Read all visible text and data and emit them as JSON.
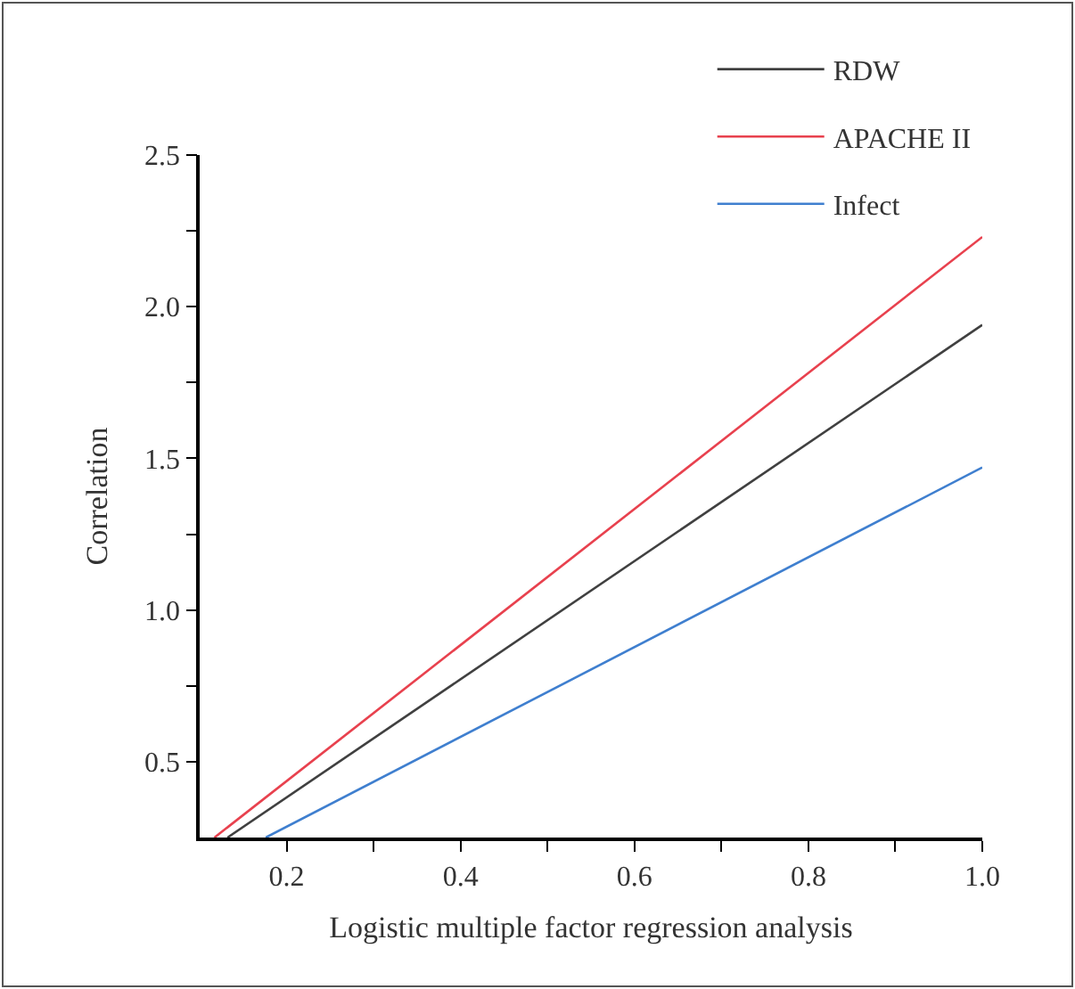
{
  "chart_data": {
    "type": "line",
    "xlabel": "Logistic multiple factor regression analysis",
    "ylabel": "Correlation",
    "xlim": [
      0.1,
      1.0
    ],
    "ylim": [
      0.25,
      2.5
    ],
    "xticks": [
      0.2,
      {
        "value": 0.3,
        "label": null
      },
      0.4,
      {
        "value": 0.5,
        "label": null
      },
      0.6,
      {
        "value": 0.7,
        "label": null
      },
      0.8,
      {
        "value": 0.9,
        "label": null
      },
      {
        "value": 1,
        "label": "1.0"
      }
    ],
    "yticks": [
      0.5,
      {
        "value": 0.75,
        "label": null
      },
      {
        "value": 1,
        "label": "1.0"
      },
      {
        "value": 1.25,
        "label": null
      },
      1.5,
      {
        "value": 1.75,
        "label": null
      },
      {
        "value": 2,
        "label": "2.0"
      },
      {
        "value": 2.25,
        "label": null
      },
      2.5
    ],
    "grid": false,
    "legend": "top right",
    "marker": "none",
    "line_style": "solid",
    "series": [
      {
        "name": "RDW",
        "color": "#404040",
        "x": [
          0.132,
          1.0
        ],
        "values": [
          0.25,
          1.94
        ]
      },
      {
        "name": "APACHE II",
        "color": "#e8414e",
        "x": [
          0.117,
          1.0
        ],
        "values": [
          0.25,
          2.23
        ]
      },
      {
        "name": "Infect",
        "color": "#3f7fcf",
        "x": [
          0.176,
          1.0
        ],
        "values": [
          0.25,
          1.47
        ]
      }
    ]
  }
}
